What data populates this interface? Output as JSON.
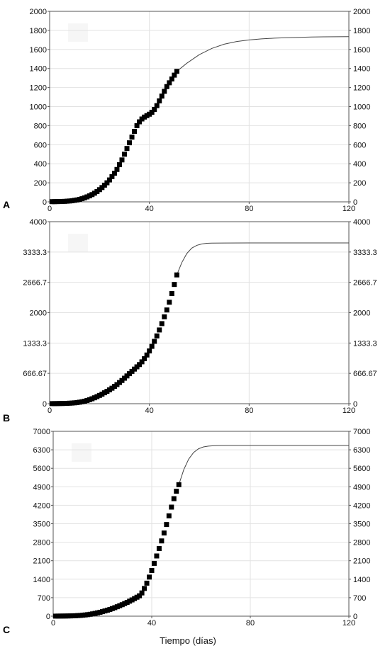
{
  "figure": {
    "xlabel": "Tiempo (días)"
  },
  "chart_data": [
    {
      "panel": "A",
      "type": "scatter",
      "xlim": [
        0,
        120
      ],
      "ylim": [
        0,
        2000
      ],
      "xticks": [
        "0",
        "40",
        "80",
        "120"
      ],
      "yticks": [
        "0",
        "200",
        "400",
        "600",
        "800",
        "1000",
        "1200",
        "1400",
        "1600",
        "1800",
        "2000"
      ],
      "grid": true,
      "series": [
        {
          "kind": "points",
          "marker": "square",
          "x": [
            1,
            2,
            3,
            4,
            5,
            6,
            7,
            8,
            9,
            10,
            11,
            12,
            13,
            14,
            15,
            16,
            17,
            18,
            19,
            20,
            21,
            22,
            23,
            24,
            25,
            26,
            27,
            28,
            29,
            30,
            31,
            32,
            33,
            34,
            35,
            36,
            37,
            38,
            39,
            40,
            41,
            42,
            43,
            44,
            45,
            46,
            47,
            48,
            49,
            50,
            51
          ],
          "y": [
            2,
            2,
            3,
            3,
            4,
            5,
            7,
            9,
            12,
            16,
            20,
            26,
            33,
            42,
            52,
            63,
            76,
            91,
            108,
            128,
            150,
            175,
            200,
            230,
            265,
            300,
            340,
            390,
            440,
            500,
            560,
            620,
            680,
            740,
            800,
            840,
            870,
            890,
            905,
            920,
            940,
            970,
            1010,
            1060,
            1110,
            1160,
            1210,
            1250,
            1290,
            1330,
            1370
          ]
        },
        {
          "kind": "curve",
          "model": "logistic-fit",
          "x": [
            51,
            55,
            60,
            65,
            70,
            75,
            80,
            85,
            90,
            95,
            100,
            105,
            110,
            115,
            120
          ],
          "y": [
            1370,
            1455,
            1545,
            1610,
            1655,
            1683,
            1700,
            1711,
            1718,
            1723,
            1727,
            1730,
            1732,
            1733,
            1734
          ]
        }
      ]
    },
    {
      "panel": "B",
      "type": "scatter",
      "xlim": [
        0,
        120
      ],
      "ylim": [
        0,
        4000
      ],
      "xticks": [
        "0",
        "40",
        "80",
        "120"
      ],
      "yticks": [
        "0",
        "666.67",
        "1333.3",
        "2000",
        "2666.7",
        "3333.3",
        "4000"
      ],
      "grid": true,
      "series": [
        {
          "kind": "points",
          "marker": "square",
          "x": [
            1,
            2,
            3,
            4,
            5,
            6,
            7,
            8,
            9,
            10,
            11,
            12,
            13,
            14,
            15,
            16,
            17,
            18,
            19,
            20,
            21,
            22,
            23,
            24,
            25,
            26,
            27,
            28,
            29,
            30,
            31,
            32,
            33,
            34,
            35,
            36,
            37,
            38,
            39,
            40,
            41,
            42,
            43,
            44,
            45,
            46,
            47,
            48,
            49,
            50,
            51
          ],
          "y": [
            2,
            2,
            3,
            4,
            5,
            6,
            8,
            11,
            14,
            19,
            25,
            33,
            43,
            55,
            70,
            88,
            108,
            130,
            155,
            182,
            210,
            240,
            272,
            305,
            340,
            380,
            420,
            465,
            510,
            560,
            610,
            660,
            710,
            760,
            810,
            860,
            920,
            990,
            1070,
            1160,
            1260,
            1370,
            1490,
            1620,
            1760,
            1910,
            2060,
            2230,
            2420,
            2620,
            2830
          ]
        },
        {
          "kind": "curve",
          "model": "logistic-fit",
          "x": [
            51,
            53,
            55,
            57,
            59,
            61,
            63,
            65,
            70,
            80,
            90,
            100,
            110,
            120
          ],
          "y": [
            2830,
            3100,
            3300,
            3420,
            3480,
            3510,
            3525,
            3530,
            3532,
            3533,
            3533,
            3533,
            3533,
            3533
          ]
        }
      ]
    },
    {
      "panel": "C",
      "type": "scatter",
      "xlim": [
        0,
        120
      ],
      "ylim": [
        0,
        7000
      ],
      "xticks": [
        "0",
        "40",
        "80",
        "120"
      ],
      "yticks": [
        "0",
        "700",
        "1400",
        "2100",
        "2800",
        "3500",
        "4200",
        "4900",
        "5600",
        "6300",
        "7000"
      ],
      "grid": true,
      "series": [
        {
          "kind": "points",
          "marker": "square",
          "x": [
            1,
            2,
            3,
            4,
            5,
            6,
            7,
            8,
            9,
            10,
            11,
            12,
            13,
            14,
            15,
            16,
            17,
            18,
            19,
            20,
            21,
            22,
            23,
            24,
            25,
            26,
            27,
            28,
            29,
            30,
            31,
            32,
            33,
            34,
            35,
            36,
            37,
            38,
            39,
            40,
            41,
            42,
            43,
            44,
            45,
            46,
            47,
            48,
            49,
            50,
            51
          ],
          "y": [
            2,
            3,
            4,
            5,
            6,
            8,
            10,
            13,
            17,
            22,
            28,
            36,
            46,
            58,
            72,
            88,
            106,
            126,
            148,
            172,
            198,
            226,
            256,
            288,
            322,
            358,
            396,
            436,
            478,
            522,
            568,
            616,
            666,
            718,
            772,
            880,
            1050,
            1250,
            1480,
            1730,
            2000,
            2280,
            2560,
            2850,
            3150,
            3470,
            3800,
            4130,
            4450,
            4730,
            4980
          ]
        },
        {
          "kind": "curve",
          "model": "logistic-fit",
          "x": [
            51,
            53,
            55,
            57,
            59,
            61,
            63,
            65,
            67,
            70,
            80,
            90,
            100,
            110,
            120
          ],
          "y": [
            4980,
            5550,
            5950,
            6200,
            6340,
            6410,
            6440,
            6455,
            6460,
            6462,
            6463,
            6463,
            6463,
            6463,
            6463
          ]
        }
      ]
    }
  ]
}
